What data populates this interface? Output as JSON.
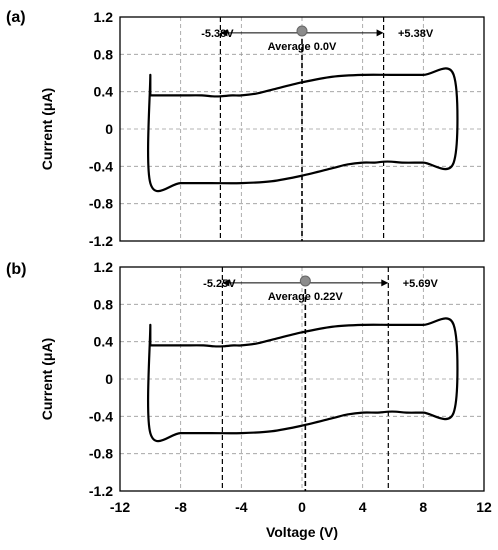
{
  "chart_data": [
    {
      "type": "line",
      "panel_label": "(a)",
      "xlabel": "",
      "ylabel": "Current (μA)",
      "xlim": [
        -12,
        12
      ],
      "ylim": [
        -1.2,
        1.2
      ],
      "x_ticks": [],
      "y_ticks": [
        "1.2",
        "0.8",
        "0.4",
        "0",
        "-0.4",
        "-0.8",
        "-1.2"
      ],
      "y_tick_values": [
        1.2,
        0.8,
        0.4,
        0,
        -0.4,
        -0.8,
        -1.2
      ],
      "grid": true,
      "series": [
        {
          "color": "#000000",
          "x": [
            -10,
            -10,
            -8,
            -6,
            -4,
            -2,
            0,
            2,
            3,
            4,
            4.8,
            5.38,
            5.9,
            6.6,
            8,
            10,
            10,
            8,
            6,
            4,
            2,
            0,
            -2,
            -3,
            -4,
            -4.6,
            -5.38,
            -5.9,
            -6.6,
            -8,
            -10
          ],
          "y": [
            0.58,
            -0.58,
            -0.58,
            -0.58,
            -0.58,
            -0.56,
            -0.5,
            -0.42,
            -0.38,
            -0.36,
            -0.36,
            -0.35,
            -0.35,
            -0.36,
            -0.36,
            -0.36,
            0.58,
            0.58,
            0.58,
            0.58,
            0.56,
            0.5,
            0.42,
            0.38,
            0.36,
            0.36,
            0.35,
            0.35,
            0.36,
            0.36,
            0.36
          ]
        }
      ],
      "annotations": {
        "left_label": "-5.38V",
        "right_label": "+5.38V",
        "average_label": "Average 0.0V",
        "left_x": -5.38,
        "right_x": 5.38,
        "average_x": 0.0,
        "marker_y": 1.05,
        "label_y": 1.03
      }
    },
    {
      "type": "line",
      "panel_label": "(b)",
      "xlabel": "Voltage (V)",
      "ylabel": "Current (μA)",
      "xlim": [
        -12,
        12
      ],
      "ylim": [
        -1.2,
        1.2
      ],
      "x_ticks": [
        "-12",
        "-8",
        "-4",
        "0",
        "4",
        "8",
        "12"
      ],
      "x_tick_values": [
        -12,
        -8,
        -4,
        0,
        4,
        8,
        12
      ],
      "y_ticks": [
        "1.2",
        "0.8",
        "0.4",
        "0",
        "-0.4",
        "-0.8",
        "-1.2"
      ],
      "y_tick_values": [
        1.2,
        0.8,
        0.4,
        0,
        -0.4,
        -0.8,
        -1.2
      ],
      "grid": true,
      "series": [
        {
          "color": "#000000",
          "x": [
            -10,
            -10,
            -8,
            -6,
            -4,
            -2,
            0,
            2,
            3,
            4,
            5,
            5.69,
            6.2,
            6.9,
            8,
            10,
            10,
            8,
            6,
            4,
            2,
            0,
            -2,
            -3,
            -4,
            -4.5,
            -5.25,
            -5.8,
            -6.5,
            -8,
            -10
          ],
          "y": [
            0.58,
            -0.58,
            -0.58,
            -0.58,
            -0.58,
            -0.56,
            -0.5,
            -0.42,
            -0.38,
            -0.36,
            -0.36,
            -0.35,
            -0.35,
            -0.36,
            -0.36,
            -0.36,
            0.58,
            0.58,
            0.58,
            0.58,
            0.56,
            0.5,
            0.42,
            0.38,
            0.36,
            0.36,
            0.35,
            0.35,
            0.36,
            0.36,
            0.36
          ]
        }
      ],
      "annotations": {
        "left_label": "-5.25V",
        "right_label": "+5.69V",
        "average_label": "Average 0.22V",
        "left_x": -5.25,
        "right_x": 5.69,
        "average_x": 0.22,
        "marker_y": 1.05,
        "label_y": 1.03
      }
    }
  ]
}
